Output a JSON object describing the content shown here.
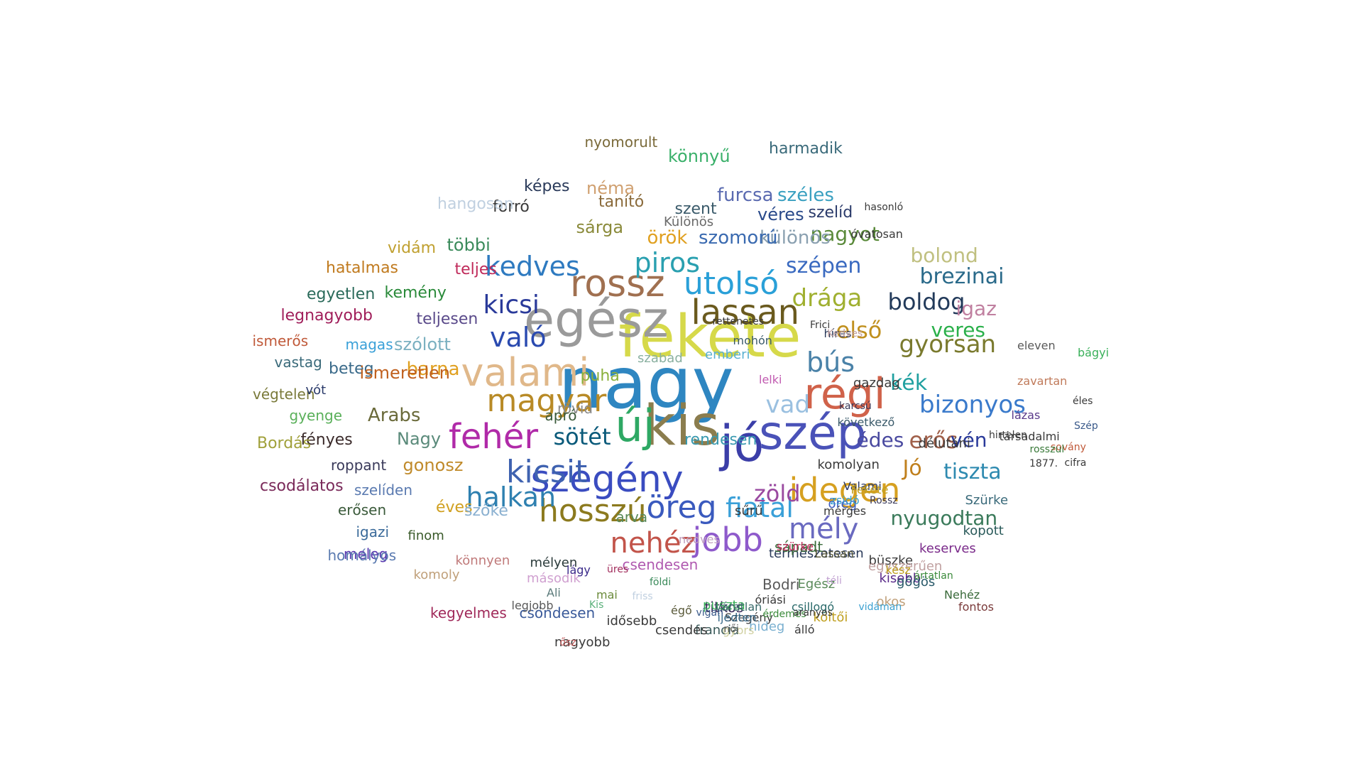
{
  "words": [
    {
      "t": "nagy",
      "c": "#2e86c1"
    },
    {
      "t": "fekete",
      "c": "#d6d94a"
    },
    {
      "t": "egész",
      "c": "#9a9a9a"
    },
    {
      "t": "kis",
      "c": "#8b7d4e"
    },
    {
      "t": "szép",
      "c": "#4a52b8"
    },
    {
      "t": "jó",
      "c": "#3b3ea8"
    },
    {
      "t": "régi",
      "c": "#d0624a"
    },
    {
      "t": "új",
      "c": "#2ea864"
    },
    {
      "t": "valami",
      "c": "#e0b88a"
    },
    {
      "t": "szegény",
      "c": "#3a4cc0"
    },
    {
      "t": "magyar",
      "c": "#b88a26"
    },
    {
      "t": "rossz",
      "c": "#a07050"
    },
    {
      "t": "lassan",
      "c": "#6a5a1e"
    },
    {
      "t": "fehér",
      "c": "#b02aa8"
    },
    {
      "t": "kicsit",
      "c": "#3f62b0"
    },
    {
      "t": "jobb",
      "c": "#8e5acb"
    },
    {
      "t": "idegen",
      "c": "#d6a020"
    },
    {
      "t": "hosszú",
      "c": "#8c7a1e"
    },
    {
      "t": "öreg",
      "c": "#3a5abe"
    },
    {
      "t": "utolsó",
      "c": "#2aa0d8"
    },
    {
      "t": "való",
      "c": "#2a4ab0"
    },
    {
      "t": "kedves",
      "c": "#2e7ac0"
    },
    {
      "t": "piros",
      "c": "#2aa0b0"
    },
    {
      "t": "kicsi",
      "c": "#2a3a9a"
    },
    {
      "t": "halkan",
      "c": "#2e80b0"
    },
    {
      "t": "nehéz",
      "c": "#c2544a"
    },
    {
      "t": "fiatal",
      "c": "#3aa0d8"
    },
    {
      "t": "mély",
      "c": "#6a6ac0"
    },
    {
      "t": "bús",
      "c": "#4a82a8"
    },
    {
      "t": "gyorsan",
      "c": "#7a7a2e"
    },
    {
      "t": "első",
      "c": "#c0901e"
    },
    {
      "t": "boldog",
      "c": "#223a5a"
    },
    {
      "t": "drága",
      "c": "#a0b030"
    },
    {
      "t": "sötét",
      "c": "#0a5a7a"
    },
    {
      "t": "bizonyos",
      "c": "#3a7acb"
    },
    {
      "t": "erős",
      "c": "#a0604a"
    },
    {
      "t": "zöld",
      "c": "#9a4aa0"
    },
    {
      "t": "tiszta",
      "c": "#2e8ab0"
    },
    {
      "t": "nyugodtan",
      "c": "#3a7a5a"
    },
    {
      "t": "vad",
      "c": "#9ac0e0"
    },
    {
      "t": "kék",
      "c": "#20a0a0"
    },
    {
      "t": "vén",
      "c": "#2a3a9a"
    },
    {
      "t": "Jó",
      "c": "#c0801e"
    },
    {
      "t": "édes",
      "c": "#4a4aa0"
    },
    {
      "t": "brezinai",
      "c": "#2a6a8a"
    },
    {
      "t": "igaz",
      "c": "#c080a0"
    },
    {
      "t": "veres",
      "c": "#2ab04a"
    },
    {
      "t": "nagyot",
      "c": "#5a8a3a"
    },
    {
      "t": "szépen",
      "c": "#3a6ac0"
    },
    {
      "t": "bolond",
      "c": "#c0c080"
    },
    {
      "t": "különös",
      "c": "#8aa0b0"
    },
    {
      "t": "szomorú",
      "c": "#3a6ab0"
    },
    {
      "t": "örök",
      "c": "#e0a020"
    },
    {
      "t": "furcsa",
      "c": "#5a6ab0"
    },
    {
      "t": "széles",
      "c": "#3aa0c0"
    },
    {
      "t": "harmadik",
      "c": "#3a6a7a"
    },
    {
      "t": "könnyű",
      "c": "#3ab06a"
    },
    {
      "t": "néma",
      "c": "#d0a070"
    },
    {
      "t": "képes",
      "c": "#2a3a5a"
    },
    {
      "t": "nyomorult",
      "c": "#7a6a3a"
    },
    {
      "t": "tanító",
      "c": "#8a6a3a"
    },
    {
      "t": "forró",
      "c": "#3a3a3a"
    },
    {
      "t": "hangosan",
      "c": "#c0d0e0"
    },
    {
      "t": "sárga",
      "c": "#8a8a3a"
    },
    {
      "t": "szent",
      "c": "#3a5a6a"
    },
    {
      "t": "véres",
      "c": "#2a4a8a"
    },
    {
      "t": "szelíd",
      "c": "#2a3a6a"
    },
    {
      "t": "Különös",
      "c": "#6a6a6a"
    },
    {
      "t": "többi",
      "c": "#3a8a5a"
    },
    {
      "t": "teljes",
      "c": "#c02a5a"
    },
    {
      "t": "vidám",
      "c": "#c0a030"
    },
    {
      "t": "hatalmas",
      "c": "#c07a1e"
    },
    {
      "t": "egyetlen",
      "c": "#2a6a5a"
    },
    {
      "t": "kemény",
      "c": "#2a8a3a"
    },
    {
      "t": "legnagyobb",
      "c": "#a01e5a"
    },
    {
      "t": "teljesen",
      "c": "#5a4a8a"
    },
    {
      "t": "szólott",
      "c": "#7ab0c0"
    },
    {
      "t": "magas",
      "c": "#3aa0d8"
    },
    {
      "t": "ismerős",
      "c": "#c05a3a"
    },
    {
      "t": "vastag",
      "c": "#3a6a7a"
    },
    {
      "t": "barna",
      "c": "#e0a020"
    },
    {
      "t": "beteg",
      "c": "#3a6a8a"
    },
    {
      "t": "ismeretlen",
      "c": "#c0601e"
    },
    {
      "t": "végtelen",
      "c": "#7a7a3a"
    },
    {
      "t": "vót",
      "c": "#2a3a6a"
    },
    {
      "t": "Arabs",
      "c": "#6a6a3a"
    },
    {
      "t": "gyenge",
      "c": "#5ab05a"
    },
    {
      "t": "Nagy",
      "c": "#5a8a7a"
    },
    {
      "t": "gonosz",
      "c": "#c08a2a"
    },
    {
      "t": "fényes",
      "c": "#3a2a2a"
    },
    {
      "t": "Bordás",
      "c": "#a0a03a"
    },
    {
      "t": "roppant",
      "c": "#3a3a5a"
    },
    {
      "t": "csodálatos",
      "c": "#7a2a5a"
    },
    {
      "t": "szelíden",
      "c": "#5a7ab0"
    },
    {
      "t": "erősen",
      "c": "#3a5a3a"
    },
    {
      "t": "éves",
      "c": "#d0a020"
    },
    {
      "t": "igazi",
      "c": "#3a6a9a"
    },
    {
      "t": "meleg",
      "c": "#5a3ab0"
    },
    {
      "t": "szőke",
      "c": "#8ab0d0"
    },
    {
      "t": "finom",
      "c": "#3a5a2a"
    },
    {
      "t": "könnyen",
      "c": "#c07a7a"
    },
    {
      "t": "homályos",
      "c": "#5a7ab0"
    },
    {
      "t": "komoly",
      "c": "#c0a07a"
    },
    {
      "t": "második",
      "c": "#d0a0d0"
    },
    {
      "t": "csöndesen",
      "c": "#3a5a9a"
    },
    {
      "t": "kegyelmes",
      "c": "#a02a5a"
    },
    {
      "t": "csendesen",
      "c": "#b05ab0"
    },
    {
      "t": "mélyen",
      "c": "#2a3a3a"
    },
    {
      "t": "titkos",
      "c": "#3a2a5a"
    },
    {
      "t": "francia",
      "c": "#3a5a5a"
    },
    {
      "t": "csendes",
      "c": "#3a3a3a"
    },
    {
      "t": "természetesen",
      "c": "#2a3a5a"
    },
    {
      "t": "kisebb",
      "c": "#5a2a8a"
    },
    {
      "t": "okos",
      "c": "#c0a07a"
    },
    {
      "t": "hideg",
      "c": "#7ab0d0"
    },
    {
      "t": "rendesen",
      "c": "#3a9ab0"
    },
    {
      "t": "komolyan",
      "c": "#3a3a3a"
    },
    {
      "t": "Valami",
      "c": "#2a3a6a"
    },
    {
      "t": "öreg",
      "c": "#3a5abe"
    },
    {
      "t": "árva",
      "c": "#5a8a5a"
    },
    {
      "t": "rövid",
      "c": "#8a8a8a"
    },
    {
      "t": "apró",
      "c": "#3a5a3a"
    },
    {
      "t": "puha",
      "c": "#8ab03a"
    },
    {
      "t": "szabad",
      "c": "#8ab0a0"
    },
    {
      "t": "lelki",
      "c": "#c05ab0"
    },
    {
      "t": "emberi",
      "c": "#5ab0d0"
    },
    {
      "t": "gazdag",
      "c": "#3a3a3a"
    },
    {
      "t": "híres",
      "c": "#2a3a5a"
    },
    {
      "t": "sűrű",
      "c": "#3a3a3a"
    },
    {
      "t": "nedves",
      "c": "#c0a0c0"
    },
    {
      "t": "sápadt",
      "c": "#3a6a3a"
    },
    {
      "t": "büszke",
      "c": "#3a3a3a"
    },
    {
      "t": "Bodri",
      "c": "#5a5a5a"
    },
    {
      "t": "Egész",
      "c": "#5a8a5a"
    },
    {
      "t": "puszta",
      "c": "#3ab05a"
    },
    {
      "t": "gyors",
      "c": "#d0d0a0"
    },
    {
      "t": "Szegény",
      "c": "#3a3a3a"
    },
    {
      "t": "költői",
      "c": "#c0a020"
    },
    {
      "t": "nagyobb",
      "c": "#3a3a3a"
    },
    {
      "t": "idősebb",
      "c": "#3a3a3a"
    },
    {
      "t": "ijedten",
      "c": "#3a6a8a"
    },
    {
      "t": "csillogó",
      "c": "#2a6a6a"
    },
    {
      "t": "egyszerűen",
      "c": "#c0a0a0"
    },
    {
      "t": "gőgös",
      "c": "#2a5a6a"
    },
    {
      "t": "keserves",
      "c": "#7a2a8a"
    },
    {
      "t": "kopott",
      "c": "#2a5a5a"
    },
    {
      "t": "Szürke",
      "c": "#3a6a7a"
    },
    {
      "t": "délutáni",
      "c": "#3a3a3a"
    },
    {
      "t": "társadalmi",
      "c": "#3a3a3a"
    },
    {
      "t": "sovány",
      "c": "#c05a3a"
    },
    {
      "t": "zavartan",
      "c": "#c07a5a"
    },
    {
      "t": "lázas",
      "c": "#5a3a8a"
    },
    {
      "t": "éles",
      "c": "#3a3a3a"
    },
    {
      "t": "1877.",
      "c": "#3a3a3a"
    },
    {
      "t": "Szép",
      "c": "#3a5a8a"
    },
    {
      "t": "cifra",
      "c": "#3a3a3a"
    },
    {
      "t": "bágyi",
      "c": "#3ab05a"
    },
    {
      "t": "eleven",
      "c": "#5a5a5a"
    },
    {
      "t": "Nehéz",
      "c": "#3a6a3a"
    },
    {
      "t": "fontos",
      "c": "#7a3a3a"
    },
    {
      "t": "rosszul",
      "c": "#3a7a3a"
    },
    {
      "t": "hirtelen",
      "c": "#3a3a3a"
    },
    {
      "t": "kész",
      "c": "#c0a020"
    },
    {
      "t": "ártatlan",
      "c": "#3a8a3a"
    },
    {
      "t": "legjobb",
      "c": "#5a5a5a"
    },
    {
      "t": "mai",
      "c": "#6a8a3a"
    },
    {
      "t": "Ali",
      "c": "#5a7a7a"
    },
    {
      "t": "friss",
      "c": "#c0d0e0"
    },
    {
      "t": "földi",
      "c": "#3a8a5a"
    },
    {
      "t": "üres",
      "c": "#a02a5a"
    },
    {
      "t": "lágy",
      "c": "#3a2a8a"
    },
    {
      "t": "Kis",
      "c": "#5ab07a"
    },
    {
      "t": "női",
      "c": "#5a5a5a"
    },
    {
      "t": "érdemes",
      "c": "#3a8a3a"
    },
    {
      "t": "váratlan",
      "c": "#3a6a6a"
    },
    {
      "t": "óriási",
      "c": "#3a3a3a"
    },
    {
      "t": "vidáman",
      "c": "#3aa0d0"
    },
    {
      "t": "ősz",
      "c": "#c05a5a"
    },
    {
      "t": "égő",
      "c": "#5a5a3a"
    },
    {
      "t": "álló",
      "c": "#3a3a3a"
    },
    {
      "t": "téli",
      "c": "#c0a0d0"
    },
    {
      "t": "aranyos",
      "c": "#3a3a3a"
    },
    {
      "t": "vígan",
      "c": "#3a5a8a"
    },
    {
      "t": "szürke",
      "c": "#c02a5a"
    },
    {
      "t": "mérges",
      "c": "#3a3a3a"
    },
    {
      "t": "zsidó",
      "c": "#3aa0d0"
    },
    {
      "t": "Fekete",
      "c": "#c0a020"
    },
    {
      "t": "Lassan",
      "c": "#5a5a3a"
    },
    {
      "t": "Rossz",
      "c": "#3a3a5a"
    },
    {
      "t": "következő",
      "c": "#3a5a6a"
    },
    {
      "t": "karcsú",
      "c": "#3a3a5a"
    },
    {
      "t": "mohón",
      "c": "#3a5a6a"
    },
    {
      "t": "rettenetes",
      "c": "#3a3a3a"
    },
    {
      "t": "Kedves",
      "c": "#c0a0a0"
    },
    {
      "t": "Frici",
      "c": "#3a3a3a"
    },
    {
      "t": "óvatosan",
      "c": "#3a3a3a"
    },
    {
      "t": "hasonló",
      "c": "#3a3a3a"
    }
  ]
}
